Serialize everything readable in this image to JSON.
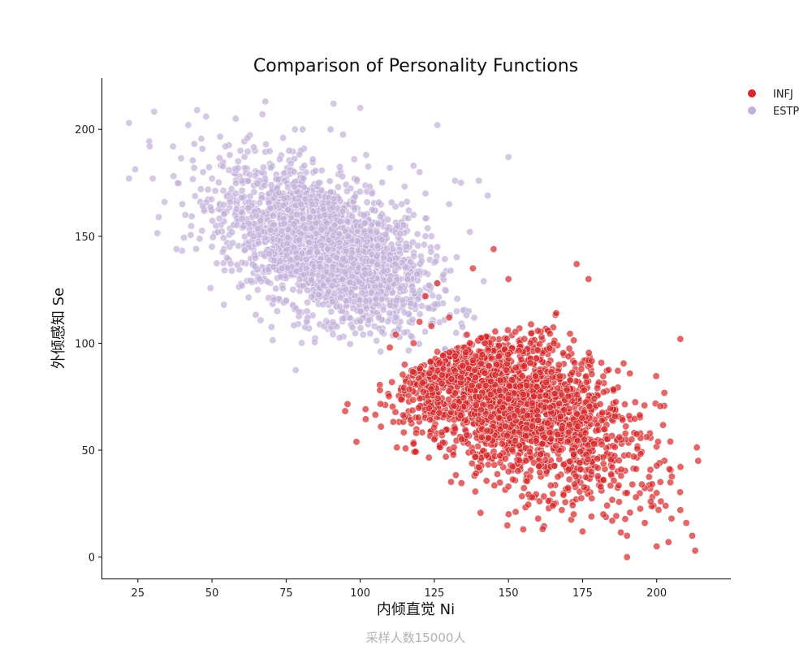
{
  "chart_data": {
    "type": "scatter",
    "title": "Comparison of Personality Functions",
    "xlabel": "内倾直觉 Ni",
    "ylabel": "外倾感知 Se",
    "caption": "采样人数15000人",
    "xlim": [
      13,
      225
    ],
    "ylim": [
      -10,
      224
    ],
    "xticks": [
      25,
      50,
      75,
      100,
      125,
      150,
      175,
      200
    ],
    "yticks": [
      0,
      50,
      100,
      150,
      200
    ],
    "grid": false,
    "legend_position": "top-right",
    "series": [
      {
        "name": "INFJ",
        "color": "#d62728",
        "clusters": [
          {
            "center": [
              148,
              75
            ],
            "spread": [
              22,
              21
            ],
            "correlation": -0.55,
            "boundary": "Se < 0.63*Ni + 14 (upper-left edge clipped)"
          }
        ],
        "x": [
          107,
          110,
          112,
          115,
          118,
          120,
          122,
          124,
          126,
          128,
          130,
          132,
          134,
          136,
          138,
          140,
          142,
          144,
          146,
          148,
          150,
          152,
          154,
          156,
          158,
          160,
          162,
          164,
          166,
          168,
          170,
          172,
          174,
          176,
          178,
          180,
          182,
          185,
          188,
          190,
          193,
          195,
          198,
          200,
          203,
          205,
          208,
          210,
          213,
          214,
          118,
          125,
          132,
          140,
          150,
          158,
          165,
          172,
          178,
          185,
          155,
          160,
          168,
          175,
          182,
          190,
          196,
          200,
          204,
          212,
          145,
          150,
          138,
          126,
          173,
          177,
          150,
          208,
          190,
          180
        ],
        "y": [
          61,
          98,
          104,
          90,
          100,
          110,
          122,
          108,
          96,
          88,
          112,
          94,
          84,
          104,
          92,
          80,
          86,
          76,
          90,
          70,
          74,
          66,
          80,
          60,
          72,
          64,
          56,
          70,
          52,
          60,
          54,
          48,
          44,
          58,
          40,
          46,
          36,
          42,
          38,
          30,
          28,
          34,
          26,
          30,
          24,
          18,
          22,
          16,
          3,
          45,
          53,
          55,
          60,
          42,
          33,
          28,
          24,
          20,
          19,
          17,
          13,
          18,
          22,
          12,
          20,
          10,
          16,
          5,
          7,
          10,
          144,
          130,
          135,
          128,
          137,
          130,
          40,
          102,
          0,
          79
        ]
      },
      {
        "name": "ESTP",
        "color": "#c3b1da",
        "clusters": [
          {
            "center": [
              88,
              145
            ],
            "spread": [
              17,
              18
            ],
            "correlation": -0.5,
            "boundary": "Se > 0.63*Ni + 14 (lower-right edge clipped)"
          }
        ],
        "x": [
          22,
          22,
          29,
          30,
          32,
          34,
          38,
          40,
          41,
          42,
          44,
          45,
          47,
          48,
          50,
          52,
          54,
          55,
          56,
          58,
          60,
          62,
          64,
          66,
          67,
          68,
          70,
          72,
          74,
          75,
          76,
          78,
          80,
          82,
          84,
          86,
          88,
          90,
          91,
          92,
          94,
          96,
          98,
          100,
          101,
          102,
          104,
          106,
          108,
          110,
          112,
          114,
          116,
          118,
          120,
          122,
          124,
          126,
          128,
          130,
          132,
          134,
          137,
          140,
          143,
          150,
          118,
          122,
          126
        ],
        "y": [
          203,
          177,
          192,
          177,
          159,
          166,
          144,
          165,
          160,
          202,
          182,
          209,
          180,
          206,
          177,
          152,
          118,
          140,
          188,
          205,
          168,
          196,
          150,
          130,
          207,
          213,
          174,
          115,
          196,
          120,
          190,
          200,
          165,
          110,
          186,
          175,
          160,
          200,
          212,
          140,
          178,
          150,
          186,
          210,
          104,
          188,
          170,
          156,
          140,
          182,
          112,
          165,
          130,
          160,
          180,
          170,
          150,
          202,
          132,
          165,
          176,
          175,
          152,
          176,
          169,
          187,
          183,
          150,
          145
        ]
      }
    ]
  }
}
